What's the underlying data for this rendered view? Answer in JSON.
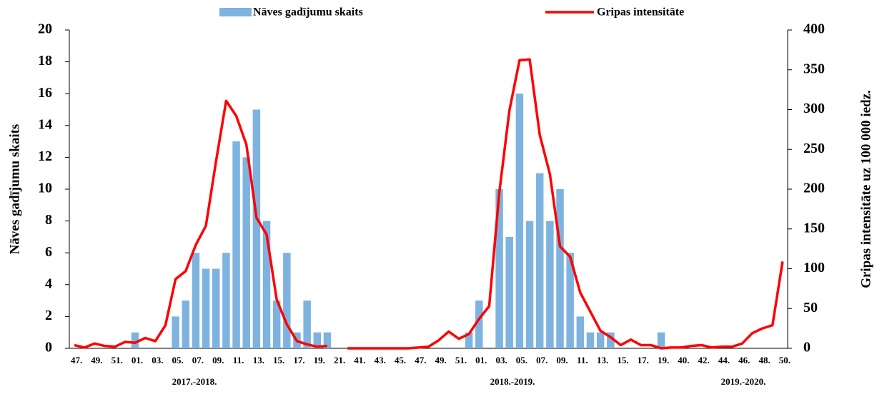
{
  "chart_data": {
    "type": "bar_line",
    "categories": [
      "47.",
      null,
      "49.",
      null,
      "51.",
      null,
      "01.",
      null,
      "03.",
      null,
      "05.",
      null,
      "07.",
      null,
      "09.",
      null,
      "11.",
      null,
      "13.",
      null,
      "15.",
      null,
      "17.",
      null,
      "19.",
      null,
      "21.",
      null,
      "41.",
      null,
      "43.",
      null,
      "45.",
      null,
      "47.",
      null,
      "49.",
      null,
      "51.",
      null,
      "01.",
      null,
      "03.",
      null,
      "05.",
      null,
      "07.",
      null,
      "09.",
      null,
      "11.",
      null,
      "13.",
      null,
      "15.",
      null,
      "17.",
      null,
      "19.",
      null,
      "40.",
      null,
      "42.",
      null,
      "44.",
      null,
      "46.",
      null,
      "48.",
      null,
      "50."
    ],
    "season_labels": [
      "2017.-2018.",
      "2018.-2019.",
      "2019.-2020."
    ],
    "series": [
      {
        "name": "Nāves gadījumu skaits",
        "kind": "bar",
        "color": "#7eb3e0",
        "values": [
          0,
          0,
          0,
          0,
          0,
          0,
          1,
          0,
          0,
          0,
          2,
          3,
          6,
          5,
          5,
          6,
          13,
          12,
          15,
          8,
          3,
          6,
          1,
          3,
          1,
          1,
          null,
          0,
          0,
          0,
          0,
          0,
          0,
          0,
          0,
          0,
          0,
          0,
          0,
          1,
          3,
          0,
          10,
          7,
          16,
          8,
          11,
          8,
          10,
          6,
          2,
          1,
          1,
          1,
          0,
          0,
          0,
          0,
          1,
          0,
          0,
          0,
          0,
          0,
          0,
          0,
          0,
          0,
          0,
          0,
          0
        ]
      },
      {
        "name": "Gripas intensitāte",
        "kind": "line",
        "color": "#ff0000",
        "axis": "y2",
        "values": [
          4,
          1,
          6,
          3,
          2,
          8,
          7,
          13,
          9,
          29,
          87,
          97,
          130,
          154,
          235,
          311,
          292,
          256,
          164,
          143,
          61,
          30,
          9,
          5,
          2,
          3,
          null,
          0,
          0,
          0,
          0,
          0,
          0,
          0,
          1,
          2,
          10,
          21,
          12,
          18,
          37,
          53,
          196,
          299,
          362,
          363,
          268,
          219,
          128,
          115,
          70,
          46,
          22,
          14,
          4,
          11,
          4,
          4,
          0,
          1,
          1,
          3,
          4,
          1,
          2,
          2,
          6,
          19,
          25,
          29,
          109
        ]
      }
    ],
    "ylabel": "Nāves gadījumu skaits",
    "y2label": "Gripas intensitāte uz 100 000 iedz.",
    "ylim": [
      0,
      20
    ],
    "yticks": [
      0,
      2,
      4,
      6,
      8,
      10,
      12,
      14,
      16,
      18,
      20
    ],
    "y2lim": [
      0,
      400
    ],
    "y2ticks": [
      0,
      50,
      100,
      150,
      200,
      250,
      300,
      350,
      400
    ],
    "grid": false
  }
}
